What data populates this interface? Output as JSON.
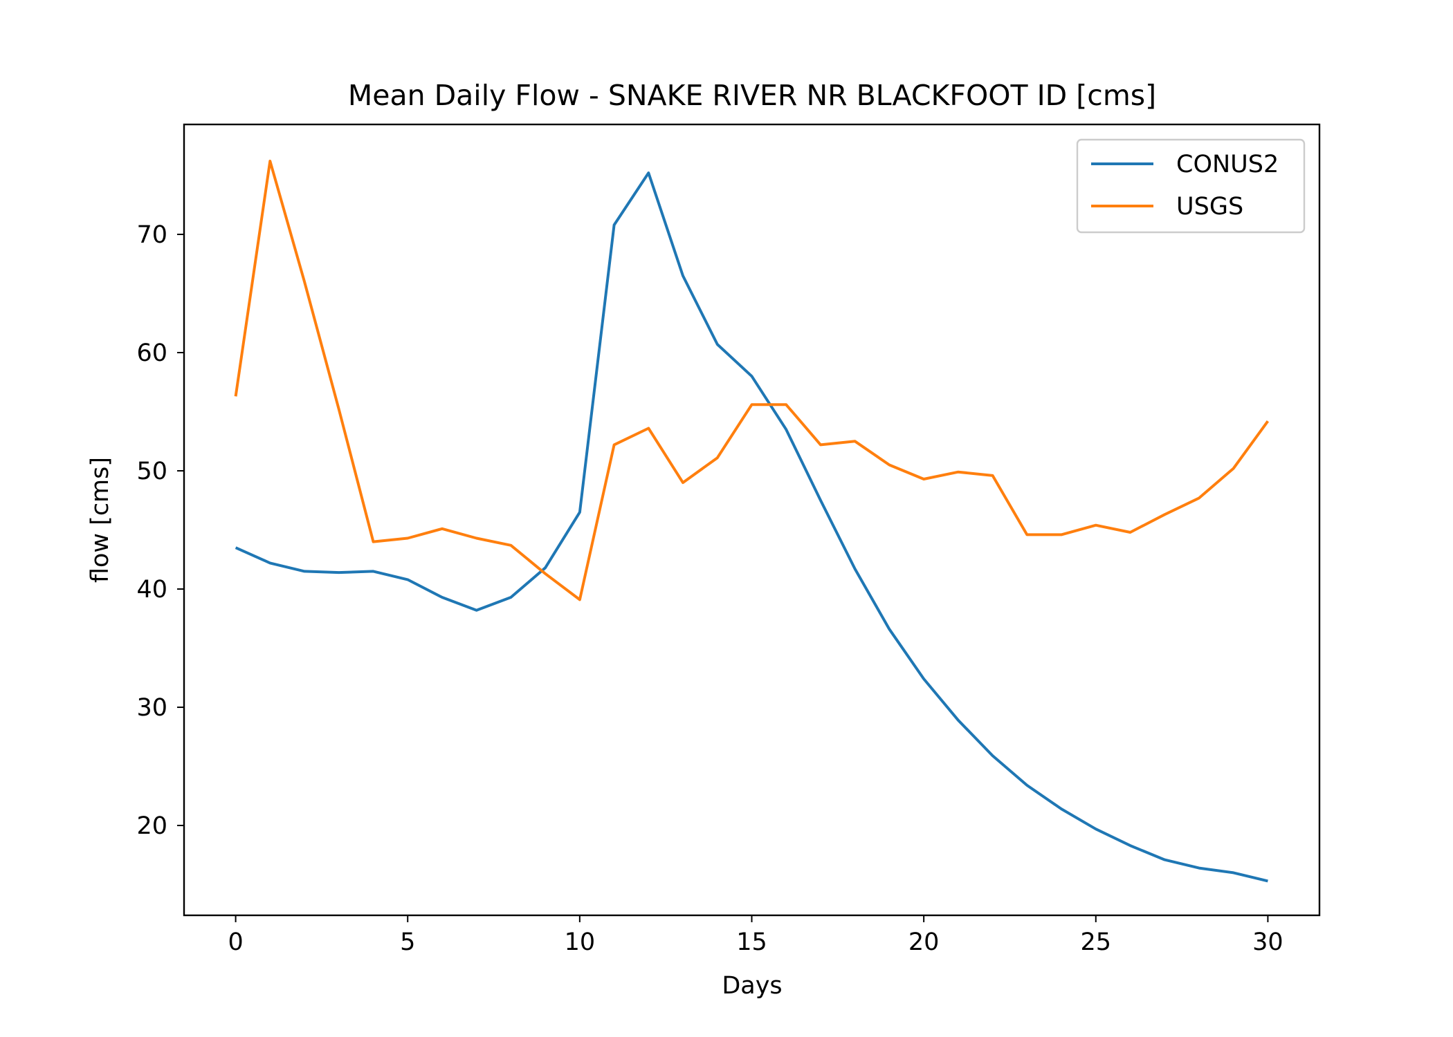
{
  "chart_data": {
    "type": "line",
    "title": "Mean Daily Flow - SNAKE RIVER NR BLACKFOOT ID [cms]",
    "xlabel": "Days",
    "ylabel": "flow [cms]",
    "xlim": [
      -1.5,
      31.5
    ],
    "ylim": [
      12.4,
      79.3
    ],
    "xticks": [
      0,
      5,
      10,
      15,
      20,
      25,
      30
    ],
    "yticks": [
      20,
      30,
      40,
      50,
      60,
      70
    ],
    "grid": false,
    "legend_position": "top-right",
    "x": [
      0,
      1,
      2,
      3,
      4,
      5,
      6,
      7,
      8,
      9,
      10,
      11,
      12,
      13,
      14,
      15,
      16,
      17,
      18,
      19,
      20,
      21,
      22,
      23,
      24,
      25,
      26,
      27,
      28,
      29,
      30
    ],
    "series": [
      {
        "name": "CONUS2",
        "color": "#1f77b4",
        "values": [
          43.5,
          42.2,
          41.5,
          41.4,
          41.5,
          40.8,
          39.3,
          38.2,
          39.3,
          41.8,
          46.5,
          70.8,
          75.2,
          66.5,
          60.7,
          58.0,
          53.5,
          47.5,
          41.7,
          36.6,
          32.4,
          28.9,
          25.9,
          23.4,
          21.4,
          19.7,
          18.3,
          17.1,
          16.4,
          16.0,
          15.3
        ]
      },
      {
        "name": "USGS",
        "color": "#ff7f0e",
        "values": [
          56.3,
          76.2,
          66.0,
          55.2,
          44.0,
          44.3,
          45.1,
          44.3,
          43.7,
          41.3,
          39.1,
          52.2,
          53.6,
          49.0,
          51.1,
          55.6,
          55.6,
          52.2,
          52.5,
          50.5,
          49.3,
          49.9,
          49.6,
          44.6,
          44.6,
          45.4,
          44.8,
          46.3,
          47.7,
          50.2,
          54.2
        ]
      }
    ]
  }
}
